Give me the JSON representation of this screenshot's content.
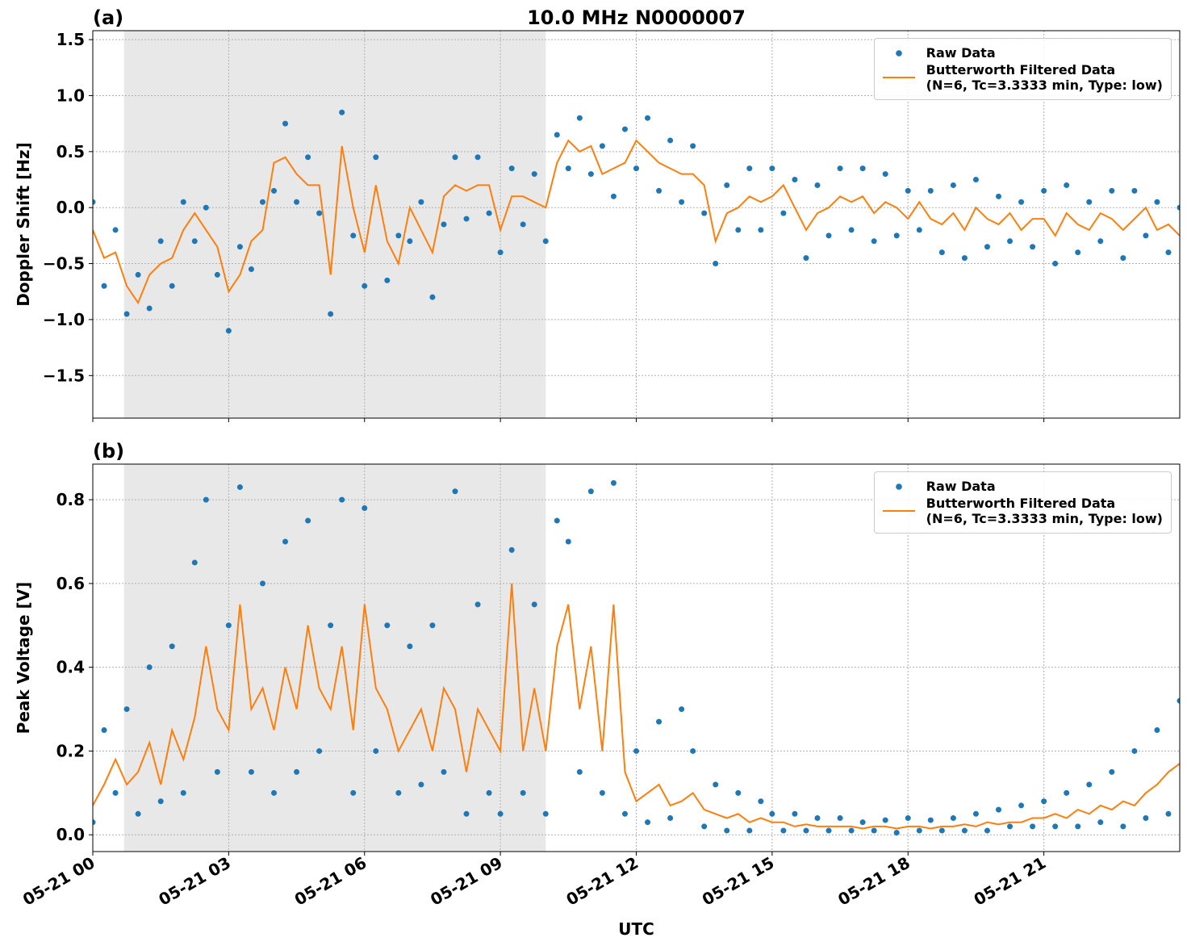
{
  "chart_data": [
    {
      "type": "line",
      "title": "10.0 MHz N0000007",
      "panel_label": "(a)",
      "ylabel": "Doppler Shift [Hz]",
      "xlim": [
        0,
        24
      ],
      "xticks": [
        0,
        3,
        6,
        9,
        12,
        15,
        18,
        21
      ],
      "ylim": [
        -1.88,
        1.58
      ],
      "yticks": [
        {
          "value": -1.5,
          "label": "−1.5"
        },
        {
          "value": -1.0,
          "label": "−1.0"
        },
        {
          "value": -0.5,
          "label": "−0.5"
        },
        {
          "value": 0.0,
          "label": "0.0"
        },
        0.5,
        {
          "value": 1.0,
          "label": "1.0"
        },
        1.5
      ],
      "grid": true,
      "legend": "upper right",
      "shade": [
        0.69,
        10.0
      ],
      "x": [
        0,
        0.25,
        0.5,
        0.75,
        1,
        1.25,
        1.5,
        1.75,
        2,
        2.25,
        2.5,
        2.75,
        3,
        3.25,
        3.5,
        3.75,
        4,
        4.25,
        4.5,
        4.75,
        5,
        5.25,
        5.5,
        5.75,
        6,
        6.25,
        6.5,
        6.75,
        7,
        7.25,
        7.5,
        7.75,
        8,
        8.25,
        8.5,
        8.75,
        9,
        9.25,
        9.5,
        9.75,
        10,
        10.25,
        10.5,
        10.75,
        11,
        11.25,
        11.5,
        11.75,
        12,
        12.25,
        12.5,
        12.75,
        13,
        13.25,
        13.5,
        13.75,
        14,
        14.25,
        14.5,
        14.75,
        15,
        15.25,
        15.5,
        15.75,
        16,
        16.25,
        16.5,
        16.75,
        17,
        17.25,
        17.5,
        17.75,
        18,
        18.25,
        18.5,
        18.75,
        19,
        19.25,
        19.5,
        19.75,
        20,
        20.25,
        20.5,
        20.75,
        21,
        21.25,
        21.5,
        21.75,
        22,
        22.25,
        22.5,
        22.75,
        23,
        23.25,
        23.5,
        23.75,
        24
      ],
      "series": [
        {
          "name": "Raw Data",
          "style": "dot",
          "color": "#1f77b4",
          "values": [
            0.05,
            -0.7,
            -0.2,
            -0.95,
            -0.6,
            -0.9,
            -0.3,
            -0.7,
            0.05,
            -0.3,
            0.0,
            -0.6,
            -1.1,
            -0.35,
            -0.55,
            0.05,
            0.15,
            0.75,
            0.05,
            0.45,
            -0.05,
            -0.95,
            0.85,
            -0.25,
            -0.7,
            0.45,
            -0.65,
            -0.25,
            -0.3,
            0.05,
            -0.8,
            -0.15,
            0.45,
            -0.1,
            0.45,
            -0.05,
            -0.4,
            0.35,
            -0.15,
            0.3,
            -0.3,
            0.65,
            0.35,
            0.8,
            0.3,
            0.55,
            0.1,
            0.7,
            0.35,
            0.8,
            0.15,
            0.6,
            0.05,
            0.55,
            -0.05,
            -0.5,
            0.2,
            -0.2,
            0.35,
            -0.2,
            0.35,
            -0.05,
            0.25,
            -0.45,
            0.2,
            -0.25,
            0.35,
            -0.2,
            0.35,
            -0.3,
            0.3,
            -0.25,
            0.15,
            -0.2,
            0.15,
            -0.4,
            0.2,
            -0.45,
            0.25,
            -0.35,
            0.1,
            -0.3,
            0.05,
            -0.35,
            0.15,
            -0.5,
            0.2,
            -0.4,
            0.05,
            -0.3,
            0.15,
            -0.45,
            0.15,
            -0.25,
            0.05,
            -0.4,
            0.0
          ]
        },
        {
          "name": "Butterworth Filtered Data\n(N=6, Tc=3.3333 min, Type: low)",
          "style": "line",
          "color": "#ff7f0e",
          "values": [
            -0.2,
            -0.45,
            -0.4,
            -0.7,
            -0.85,
            -0.6,
            -0.5,
            -0.45,
            -0.2,
            -0.05,
            -0.2,
            -0.35,
            -0.75,
            -0.6,
            -0.3,
            -0.2,
            0.4,
            0.45,
            0.3,
            0.2,
            0.2,
            -0.6,
            0.55,
            0.0,
            -0.4,
            0.2,
            -0.3,
            -0.5,
            0.0,
            -0.2,
            -0.4,
            0.1,
            0.2,
            0.15,
            0.2,
            0.2,
            -0.2,
            0.1,
            0.1,
            0.05,
            0.0,
            0.4,
            0.6,
            0.5,
            0.55,
            0.3,
            0.35,
            0.4,
            0.6,
            0.5,
            0.4,
            0.35,
            0.3,
            0.3,
            0.2,
            -0.3,
            -0.05,
            0.0,
            0.1,
            0.05,
            0.1,
            0.2,
            0.0,
            -0.2,
            -0.05,
            0.0,
            0.1,
            0.05,
            0.1,
            -0.05,
            0.05,
            0.0,
            -0.1,
            0.05,
            -0.1,
            -0.15,
            -0.05,
            -0.2,
            0.0,
            -0.1,
            -0.15,
            -0.05,
            -0.2,
            -0.1,
            -0.1,
            -0.25,
            -0.05,
            -0.15,
            -0.2,
            -0.05,
            -0.1,
            -0.2,
            -0.1,
            0.0,
            -0.2,
            -0.15,
            -0.25
          ]
        }
      ]
    },
    {
      "type": "line",
      "panel_label": "(b)",
      "ylabel": "Peak Voltage [V]",
      "xlabel": "UTC",
      "xlim": [
        0,
        24
      ],
      "xticks": [
        {
          "value": 0,
          "label": "05-21 00"
        },
        {
          "value": 3,
          "label": "05-21 03"
        },
        {
          "value": 6,
          "label": "05-21 06"
        },
        {
          "value": 9,
          "label": "05-21 09"
        },
        {
          "value": 12,
          "label": "05-21 12"
        },
        {
          "value": 15,
          "label": "05-21 15"
        },
        {
          "value": 18,
          "label": "05-21 18"
        },
        {
          "value": 21,
          "label": "05-21 21"
        }
      ],
      "ylim": [
        -0.04,
        0.885
      ],
      "yticks": [
        {
          "value": 0.0,
          "label": "0.0"
        },
        0.2,
        0.4,
        0.6,
        0.8
      ],
      "grid": true,
      "legend": "upper right",
      "shade": [
        0.69,
        10.0
      ],
      "x": [
        0,
        0.25,
        0.5,
        0.75,
        1,
        1.25,
        1.5,
        1.75,
        2,
        2.25,
        2.5,
        2.75,
        3,
        3.25,
        3.5,
        3.75,
        4,
        4.25,
        4.5,
        4.75,
        5,
        5.25,
        5.5,
        5.75,
        6,
        6.25,
        6.5,
        6.75,
        7,
        7.25,
        7.5,
        7.75,
        8,
        8.25,
        8.5,
        8.75,
        9,
        9.25,
        9.5,
        9.75,
        10,
        10.25,
        10.5,
        10.75,
        11,
        11.25,
        11.5,
        11.75,
        12,
        12.25,
        12.5,
        12.75,
        13,
        13.25,
        13.5,
        13.75,
        14,
        14.25,
        14.5,
        14.75,
        15,
        15.25,
        15.5,
        15.75,
        16,
        16.25,
        16.5,
        16.75,
        17,
        17.25,
        17.5,
        17.75,
        18,
        18.25,
        18.5,
        18.75,
        19,
        19.25,
        19.5,
        19.75,
        20,
        20.25,
        20.5,
        20.75,
        21,
        21.25,
        21.5,
        21.75,
        22,
        22.25,
        22.5,
        22.75,
        23,
        23.25,
        23.5,
        23.75,
        24
      ],
      "series": [
        {
          "name": "Raw Data",
          "style": "dot",
          "color": "#1f77b4",
          "values": [
            0.03,
            0.25,
            0.1,
            0.3,
            0.05,
            0.4,
            0.08,
            0.45,
            0.1,
            0.65,
            0.8,
            0.15,
            0.5,
            0.83,
            0.15,
            0.6,
            0.1,
            0.7,
            0.15,
            0.75,
            0.2,
            0.5,
            0.8,
            0.1,
            0.78,
            0.2,
            0.5,
            0.1,
            0.45,
            0.12,
            0.5,
            0.15,
            0.82,
            0.05,
            0.55,
            0.1,
            0.05,
            0.68,
            0.1,
            0.55,
            0.05,
            0.75,
            0.7,
            0.15,
            0.82,
            0.1,
            0.84,
            0.05,
            0.2,
            0.03,
            0.27,
            0.04,
            0.3,
            0.2,
            0.02,
            0.12,
            0.01,
            0.1,
            0.01,
            0.08,
            0.05,
            0.01,
            0.05,
            0.01,
            0.04,
            0.01,
            0.04,
            0.01,
            0.03,
            0.01,
            0.035,
            0.005,
            0.04,
            0.01,
            0.035,
            0.01,
            0.04,
            0.01,
            0.05,
            0.01,
            0.06,
            0.02,
            0.07,
            0.02,
            0.08,
            0.02,
            0.1,
            0.02,
            0.12,
            0.03,
            0.15,
            0.02,
            0.2,
            0.04,
            0.25,
            0.05,
            0.32
          ]
        },
        {
          "name": "Butterworth Filtered Data\n(N=6, Tc=3.3333 min, Type: low)",
          "style": "line",
          "color": "#ff7f0e",
          "values": [
            0.07,
            0.12,
            0.18,
            0.12,
            0.15,
            0.22,
            0.12,
            0.25,
            0.18,
            0.28,
            0.45,
            0.3,
            0.25,
            0.55,
            0.3,
            0.35,
            0.25,
            0.4,
            0.3,
            0.5,
            0.35,
            0.3,
            0.45,
            0.25,
            0.55,
            0.35,
            0.3,
            0.2,
            0.25,
            0.3,
            0.2,
            0.35,
            0.3,
            0.15,
            0.3,
            0.25,
            0.2,
            0.6,
            0.2,
            0.35,
            0.2,
            0.45,
            0.55,
            0.3,
            0.45,
            0.2,
            0.55,
            0.15,
            0.08,
            0.1,
            0.12,
            0.07,
            0.08,
            0.1,
            0.06,
            0.05,
            0.04,
            0.05,
            0.03,
            0.04,
            0.03,
            0.03,
            0.02,
            0.025,
            0.02,
            0.02,
            0.02,
            0.02,
            0.015,
            0.02,
            0.02,
            0.015,
            0.02,
            0.02,
            0.015,
            0.02,
            0.02,
            0.025,
            0.02,
            0.03,
            0.025,
            0.03,
            0.03,
            0.04,
            0.04,
            0.05,
            0.04,
            0.06,
            0.05,
            0.07,
            0.06,
            0.08,
            0.07,
            0.1,
            0.12,
            0.15,
            0.17
          ]
        }
      ]
    }
  ]
}
